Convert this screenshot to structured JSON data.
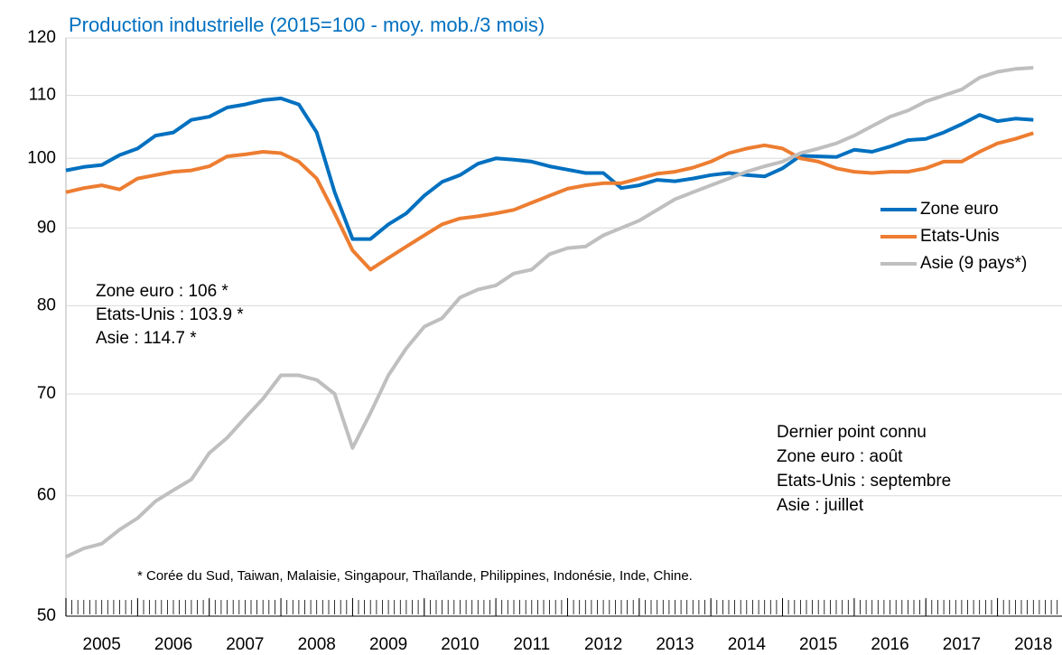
{
  "chart_data": {
    "type": "line",
    "title": "Production industrielle (2015=100 - moy. mob./3 mois)",
    "x": [
      2005,
      2005.25,
      2005.5,
      2005.75,
      2006,
      2006.25,
      2006.5,
      2006.75,
      2007,
      2007.25,
      2007.5,
      2007.75,
      2008,
      2008.25,
      2008.5,
      2008.75,
      2009,
      2009.25,
      2009.5,
      2009.75,
      2010,
      2010.25,
      2010.5,
      2010.75,
      2011,
      2011.25,
      2011.5,
      2011.75,
      2012,
      2012.25,
      2012.5,
      2012.75,
      2013,
      2013.25,
      2013.5,
      2013.75,
      2014,
      2014.25,
      2014.5,
      2014.75,
      2015,
      2015.25,
      2015.5,
      2015.75,
      2016,
      2016.25,
      2016.5,
      2016.75,
      2017,
      2017.25,
      2017.5,
      2017.75,
      2018,
      2018.25,
      2018.5
    ],
    "series": [
      {
        "name": "Zone euro",
        "color": "#0070c0",
        "values": [
          98.2,
          98.7,
          99,
          100.5,
          101.5,
          103.5,
          104,
          106,
          106.5,
          108,
          108.5,
          109.2,
          109.5,
          108.5,
          104,
          95,
          88.5,
          88.5,
          90.5,
          92,
          94.5,
          96.5,
          97.5,
          99.2,
          100,
          99.8,
          99.5,
          98.8,
          98.3,
          97.8,
          97.8,
          95.6,
          96,
          96.8,
          96.6,
          97,
          97.5,
          97.8,
          97.5,
          97.3,
          98.5,
          100.4,
          100.3,
          100.2,
          101.3,
          101,
          101.8,
          102.8,
          103,
          104,
          105.3,
          106.8,
          105.8,
          106.2,
          106
        ]
      },
      {
        "name": "Etats-Unis",
        "color": "#ed7d31",
        "values": [
          95,
          95.6,
          96,
          95.4,
          97,
          97.5,
          98,
          98.2,
          98.8,
          100.3,
          100.6,
          101,
          100.8,
          99.5,
          97,
          92,
          87,
          84.5,
          86,
          87.5,
          89,
          90.5,
          91.3,
          91.6,
          92,
          92.5,
          93.5,
          94.5,
          95.5,
          96,
          96.3,
          96.3,
          97,
          97.7,
          98,
          98.6,
          99.5,
          100.8,
          101.5,
          102,
          101.5,
          100,
          99.5,
          98.5,
          98,
          97.8,
          98,
          98,
          98.5,
          99.5,
          99.5,
          101,
          102.3,
          103,
          103.9
        ]
      },
      {
        "name": "Asie (9 pays*)",
        "color": "#bfbfbf",
        "values": [
          54.7,
          55.4,
          55.8,
          57,
          58,
          59.5,
          60.5,
          61.5,
          64,
          65.5,
          67.5,
          69.5,
          72,
          72,
          71.5,
          70,
          64.5,
          68,
          72,
          75,
          77.5,
          78.5,
          81,
          82,
          82.5,
          84,
          84.5,
          86.5,
          87.3,
          87.5,
          89,
          90,
          91,
          92.5,
          94,
          95,
          96,
          97,
          98,
          98.8,
          99.5,
          100.8,
          101.5,
          102.3,
          103.5,
          105,
          106.5,
          107.5,
          109,
          110,
          111,
          113,
          114,
          114.5,
          114.7
        ]
      }
    ],
    "xlim": [
      2005,
      2018.9
    ],
    "xticks": [
      2005,
      2006,
      2007,
      2008,
      2009,
      2010,
      2011,
      2012,
      2013,
      2014,
      2015,
      2016,
      2017,
      2018
    ],
    "ylim": [
      50,
      120
    ],
    "yticks": [
      50,
      60,
      70,
      80,
      90,
      100,
      110,
      120
    ],
    "log_scale": true,
    "grid": true,
    "legend_position": "right",
    "annotations": [
      "Zone euro : 106 *",
      "Etats-Unis : 103.9 *",
      "Asie : 114.7 *"
    ],
    "note_lines": [
      "Dernier point connu",
      "Zone euro : août",
      "Etats-Unis : septembre",
      "Asie : juillet"
    ],
    "footnote": "* Corée du Sud, Taiwan, Malaisie, Singapour, Thaïlande, Philippines, Indonésie, Inde, Chine."
  }
}
